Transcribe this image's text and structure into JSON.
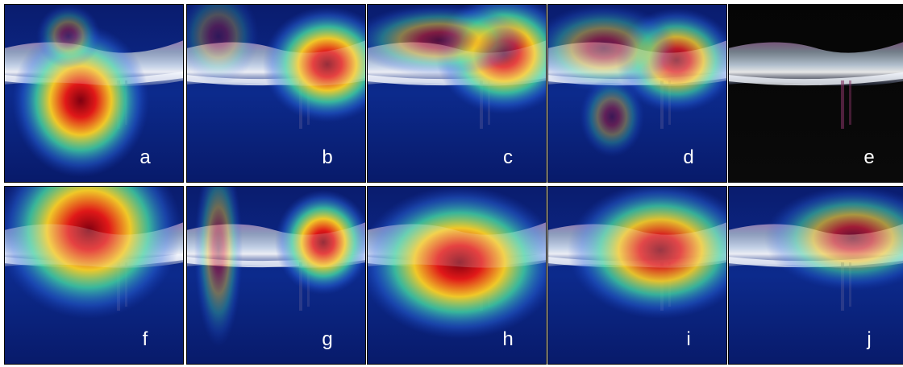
{
  "panels": [
    {
      "label": "a"
    },
    {
      "label": "b"
    },
    {
      "label": "c"
    },
    {
      "label": "d"
    },
    {
      "label": "e"
    },
    {
      "label": "f"
    },
    {
      "label": "g"
    },
    {
      "label": "h"
    },
    {
      "label": "i"
    },
    {
      "label": "j"
    }
  ]
}
